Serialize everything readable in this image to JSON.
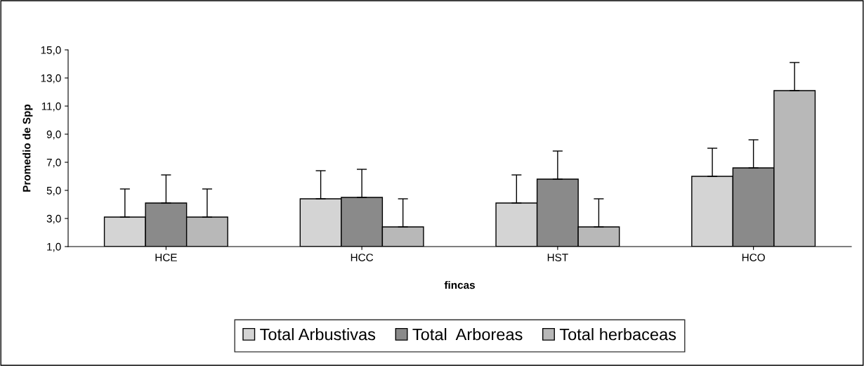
{
  "chart_data": {
    "type": "bar",
    "xlabel": "fincas",
    "ylabel": "Promedio de Spp",
    "categories": [
      "HCE",
      "HCC",
      "HST",
      "HCO"
    ],
    "series": [
      {
        "name": "Total Arbustivas",
        "color": "#d4d4d4",
        "values": [
          3.1,
          4.4,
          4.1,
          6.0
        ],
        "errors": [
          [
            3.1,
            5.1
          ],
          [
            4.4,
            6.4
          ],
          [
            4.1,
            6.1
          ],
          [
            6.0,
            8.0
          ]
        ]
      },
      {
        "name": "Total  Arboreas",
        "color": "#8a8a8a",
        "values": [
          4.1,
          4.5,
          5.8,
          6.6
        ],
        "errors": [
          [
            4.1,
            6.1
          ],
          [
            4.5,
            6.5
          ],
          [
            5.8,
            7.8
          ],
          [
            6.6,
            8.6
          ]
        ]
      },
      {
        "name": "Total herbaceas",
        "color": "#b8b8b8",
        "values": [
          3.1,
          2.4,
          2.4,
          12.1
        ],
        "errors": [
          [
            3.1,
            5.1
          ],
          [
            2.4,
            4.4
          ],
          [
            2.4,
            4.4
          ],
          [
            12.1,
            14.1
          ]
        ]
      }
    ],
    "ylim": [
      1.0,
      15.0
    ],
    "yticks": [
      {
        "value": 1,
        "label": "1,0"
      },
      {
        "value": 3,
        "label": "3,0"
      },
      {
        "value": 5,
        "label": "5,0"
      },
      {
        "value": 7,
        "label": "7,0"
      },
      {
        "value": 9,
        "label": "9,0"
      },
      {
        "value": 11,
        "label": "11,0"
      },
      {
        "value": 13,
        "label": "13,0"
      },
      {
        "value": 15,
        "label": "15,0"
      }
    ],
    "grid": false,
    "legend": "bottom"
  }
}
